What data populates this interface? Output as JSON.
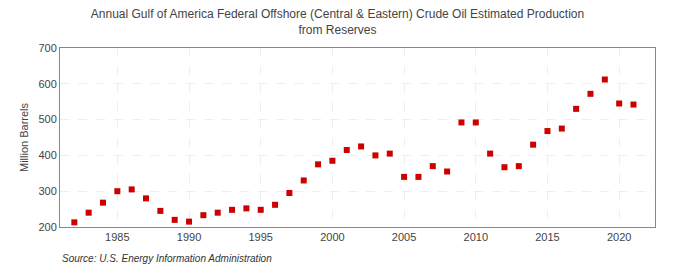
{
  "chart_data": {
    "type": "scatter",
    "title": "Annual Gulf of America Federal Offshore (Central & Eastern) Crude Oil Estimated Production\nfrom Reserves",
    "ylabel": "Million Barrels",
    "annotations": [
      "Source: U.S. Energy Information Administration"
    ],
    "x": [
      1982,
      1983,
      1984,
      1985,
      1986,
      1987,
      1988,
      1989,
      1990,
      1991,
      1992,
      1993,
      1994,
      1995,
      1996,
      1997,
      1998,
      1999,
      2000,
      2001,
      2002,
      2003,
      2004,
      2005,
      2006,
      2007,
      2008,
      2009,
      2010,
      2011,
      2012,
      2013,
      2014,
      2015,
      2016,
      2017,
      2018,
      2019,
      2020,
      2021
    ],
    "values": [
      213,
      240,
      268,
      300,
      305,
      280,
      245,
      220,
      215,
      233,
      240,
      248,
      252,
      248,
      262,
      295,
      330,
      375,
      385,
      415,
      425,
      400,
      405,
      340,
      340,
      370,
      355,
      492,
      492,
      405,
      367,
      370,
      430,
      468,
      475,
      530,
      572,
      612,
      545,
      542
    ],
    "color": "#cc0000",
    "marker": "square",
    "xlim": [
      1981,
      2022.5
    ],
    "xticks": [
      1985,
      1990,
      1995,
      2000,
      2005,
      2010,
      2015,
      2020
    ],
    "ylim": [
      200,
      700
    ],
    "yticks": [
      200,
      300,
      400,
      500,
      600,
      700
    ],
    "grid": true
  }
}
